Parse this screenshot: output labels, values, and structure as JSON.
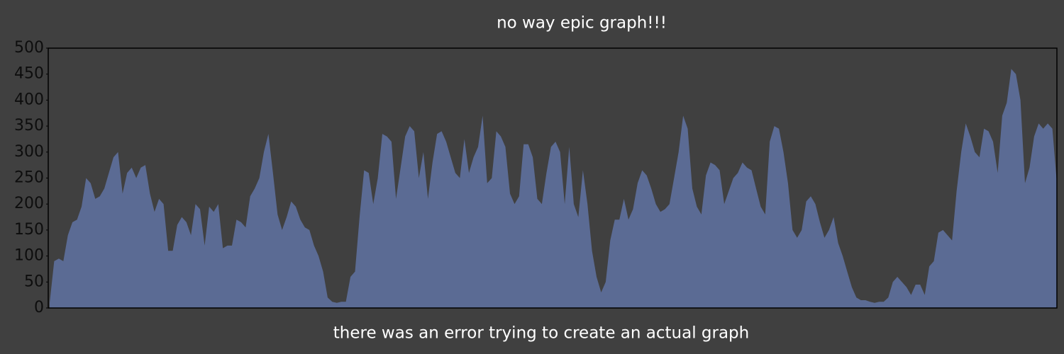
{
  "chart_data": {
    "type": "area",
    "title": "no way epic graph!!!",
    "x_label": "there was an error trying to create an actual graph",
    "values": [
      10,
      90,
      95,
      90,
      140,
      165,
      170,
      195,
      250,
      240,
      210,
      215,
      230,
      260,
      290,
      300,
      220,
      260,
      270,
      250,
      270,
      275,
      220,
      185,
      210,
      200,
      110,
      110,
      160,
      175,
      165,
      140,
      200,
      190,
      120,
      195,
      185,
      200,
      115,
      120,
      120,
      170,
      165,
      155,
      215,
      230,
      250,
      300,
      335,
      260,
      180,
      150,
      175,
      205,
      195,
      170,
      155,
      150,
      120,
      100,
      70,
      20,
      12,
      10,
      12,
      12,
      60,
      70,
      175,
      265,
      260,
      200,
      250,
      335,
      330,
      320,
      210,
      270,
      330,
      350,
      340,
      250,
      300,
      210,
      280,
      335,
      340,
      320,
      290,
      260,
      250,
      325,
      260,
      290,
      310,
      370,
      240,
      250,
      340,
      330,
      310,
      220,
      200,
      215,
      315,
      315,
      290,
      210,
      200,
      260,
      310,
      320,
      300,
      200,
      310,
      200,
      175,
      265,
      200,
      110,
      60,
      30,
      50,
      130,
      170,
      170,
      210,
      170,
      190,
      240,
      265,
      255,
      230,
      200,
      185,
      190,
      200,
      250,
      300,
      370,
      345,
      230,
      195,
      180,
      255,
      280,
      275,
      265,
      200,
      225,
      250,
      260,
      280,
      270,
      265,
      230,
      195,
      180,
      320,
      350,
      345,
      300,
      240,
      150,
      135,
      150,
      205,
      215,
      200,
      165,
      135,
      150,
      175,
      125,
      100,
      70,
      40,
      20,
      15,
      15,
      12,
      10,
      12,
      12,
      20,
      50,
      60,
      50,
      40,
      25,
      45,
      45,
      25,
      80,
      90,
      145,
      150,
      140,
      130,
      225,
      300,
      355,
      330,
      300,
      290,
      345,
      340,
      320,
      260,
      370,
      395,
      460,
      450,
      400,
      240,
      270,
      330,
      355,
      345,
      355,
      345,
      240
    ],
    "color": "#5b6b94",
    "ylim": [
      0,
      500
    ],
    "yticks": [
      0,
      50,
      100,
      150,
      200,
      250,
      300,
      350,
      400,
      450,
      500
    ]
  }
}
